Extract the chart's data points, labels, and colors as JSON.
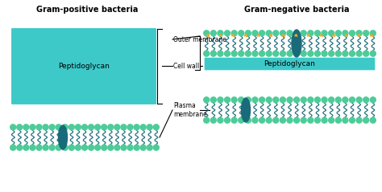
{
  "teal_light": "#3ec9c9",
  "teal_dark": "#1a6b7a",
  "green_circle": "#4dcc99",
  "orange_curl": "#f5a623",
  "title_gp": "Gram-positive bacteria",
  "title_gn": "Gram-negative bacteria",
  "label_peptido": "Peptidoglycan",
  "label_outer": "Outer membrane",
  "label_cell_wall": "Cell wall",
  "label_plasma": "Plasma\nmembrane",
  "fig_w": 4.74,
  "fig_h": 2.39,
  "dpi": 100
}
